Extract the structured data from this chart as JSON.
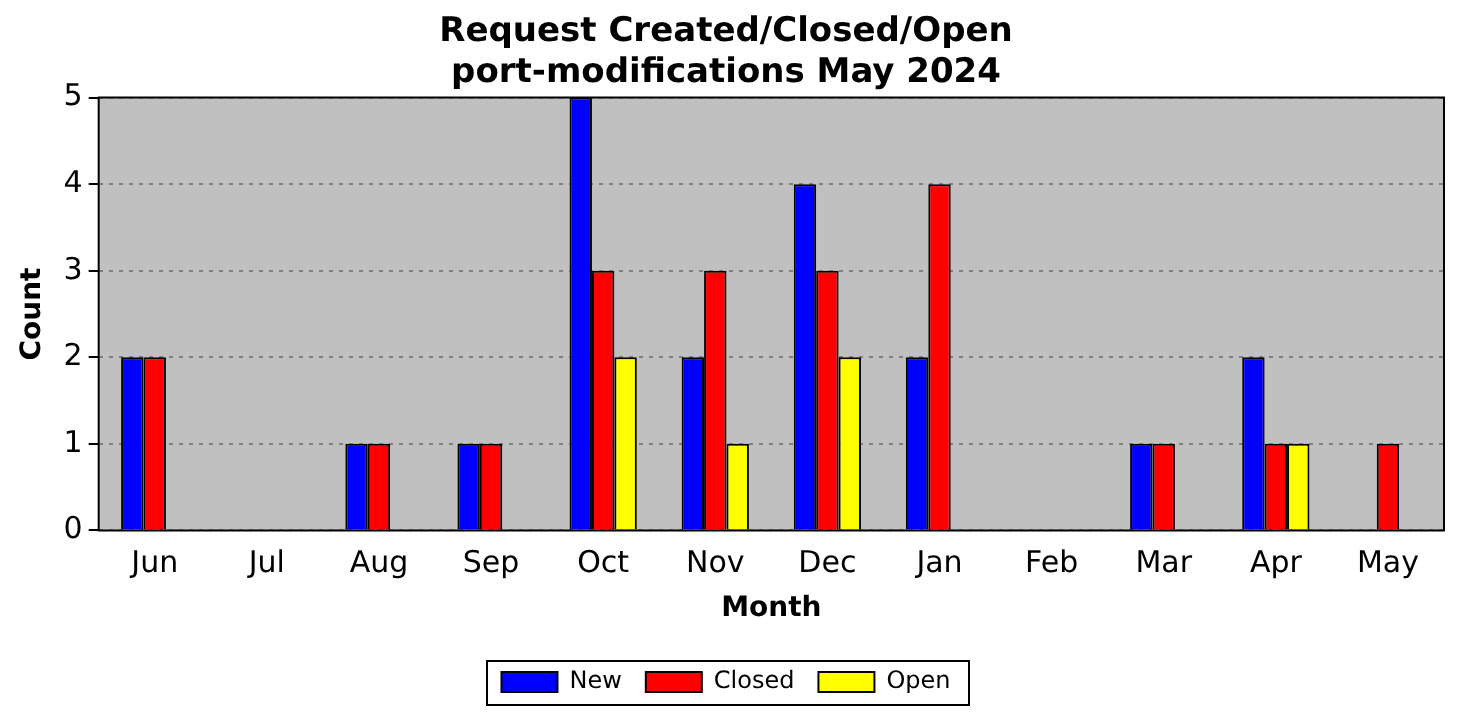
{
  "chart_data": {
    "type": "bar",
    "title": "Request Created/Closed/Open",
    "subtitle": "port-modifications May 2024",
    "xlabel": "Month",
    "ylabel": "Count",
    "categories": [
      "Jun",
      "Jul",
      "Aug",
      "Sep",
      "Oct",
      "Nov",
      "Dec",
      "Jan",
      "Feb",
      "Mar",
      "Apr",
      "May"
    ],
    "series": [
      {
        "name": "New",
        "color": "#0000ff",
        "values": [
          2,
          0,
          1,
          1,
          5,
          2,
          4,
          2,
          0,
          1,
          2,
          0
        ]
      },
      {
        "name": "Closed",
        "color": "#ff0000",
        "values": [
          2,
          0,
          1,
          1,
          3,
          3,
          3,
          4,
          0,
          1,
          1,
          1
        ]
      },
      {
        "name": "Open",
        "color": "#ffff00",
        "values": [
          0,
          0,
          0,
          0,
          2,
          1,
          2,
          0,
          0,
          0,
          1,
          0
        ]
      }
    ],
    "ylim": [
      0,
      5
    ],
    "yticks": [
      0,
      1,
      2,
      3,
      4,
      5
    ],
    "grid": "y",
    "legend": "bottom"
  }
}
